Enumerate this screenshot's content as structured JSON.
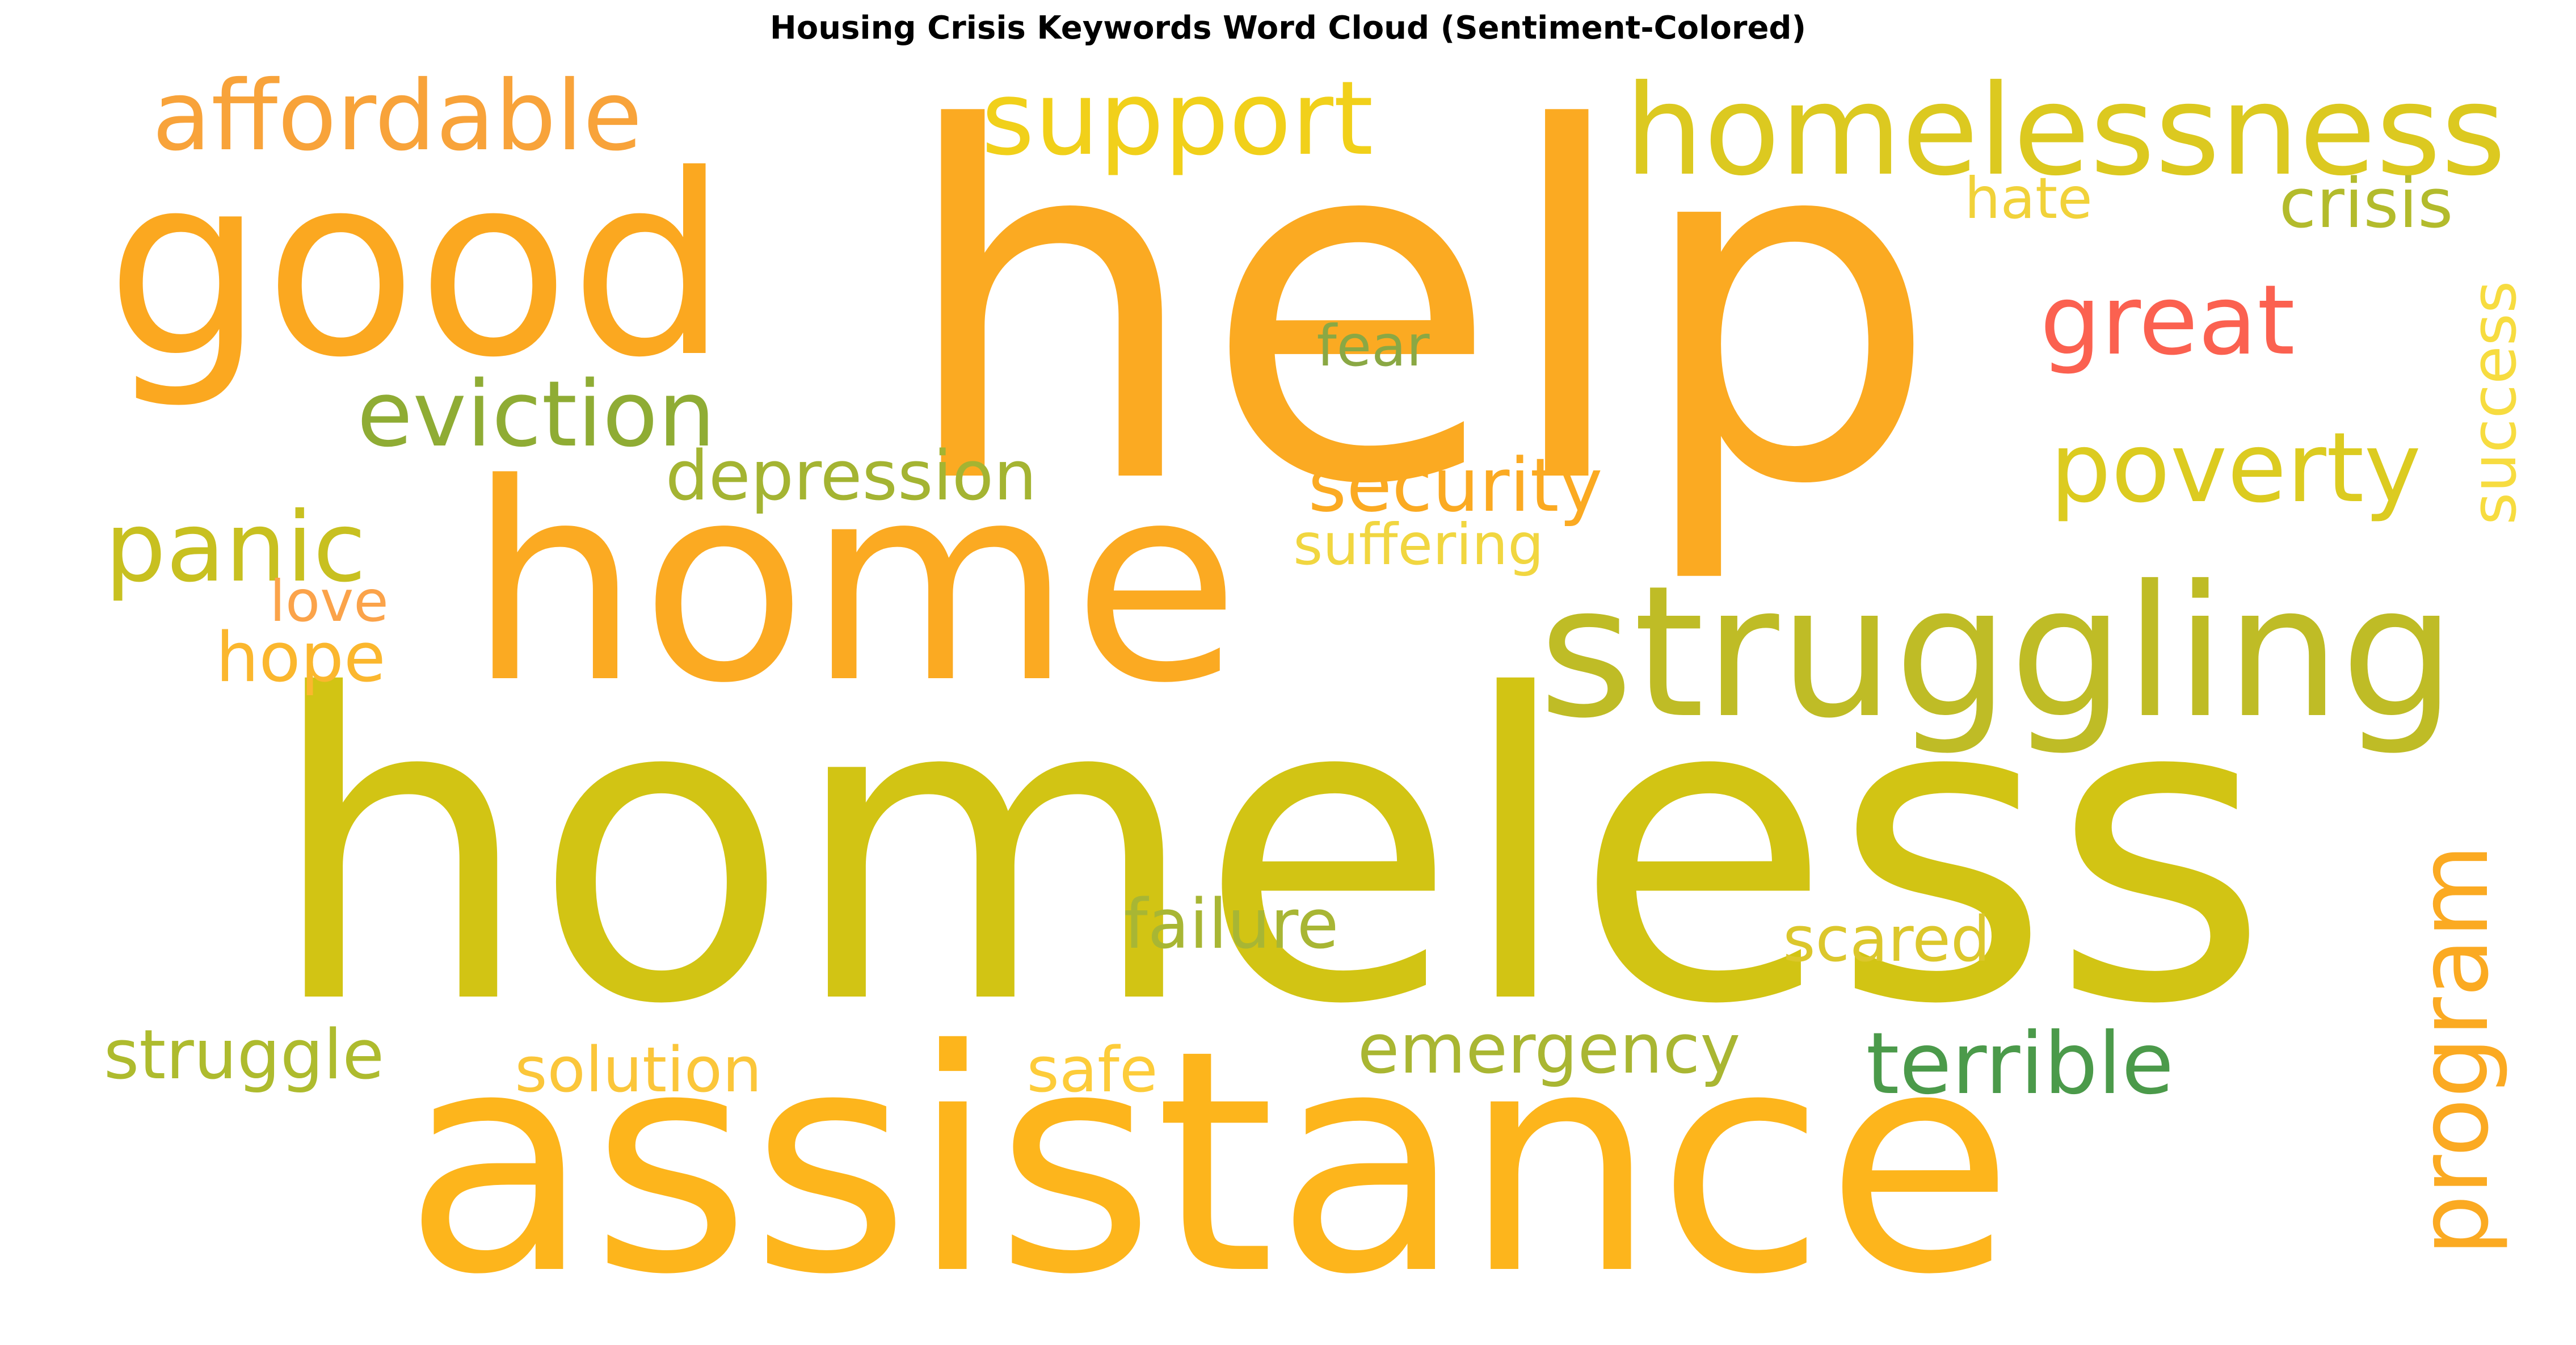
{
  "title": "Housing Crisis Keywords Word Cloud (Sentiment-Colored)",
  "words": [
    {
      "text": "homeless",
      "color": "#d2c414",
      "vertical": false
    },
    {
      "text": "help",
      "color": "#fbaa22",
      "vertical": false
    },
    {
      "text": "assistance",
      "color": "#fdb51c",
      "vertical": false
    },
    {
      "text": "home",
      "color": "#fbaa22",
      "vertical": false
    },
    {
      "text": "good",
      "color": "#fba820",
      "vertical": false
    },
    {
      "text": "struggling",
      "color": "#bfbc26",
      "vertical": false
    },
    {
      "text": "homelessness",
      "color": "#dcc920",
      "vertical": false
    },
    {
      "text": "affordable",
      "color": "#f8a33a",
      "vertical": false
    },
    {
      "text": "support",
      "color": "#f1d01a",
      "vertical": false
    },
    {
      "text": "great",
      "color": "#fb6150",
      "vertical": false
    },
    {
      "text": "eviction",
      "color": "#8fac34",
      "vertical": false
    },
    {
      "text": "poverty",
      "color": "#dccb20",
      "vertical": false
    },
    {
      "text": "security",
      "color": "#fbaa22",
      "vertical": false
    },
    {
      "text": "panic",
      "color": "#c8c020",
      "vertical": false
    },
    {
      "text": "crisis",
      "color": "#b3bb2c",
      "vertical": false
    },
    {
      "text": "depression",
      "color": "#a4b432",
      "vertical": false
    },
    {
      "text": "program",
      "color": "#fbaa22",
      "vertical": true
    },
    {
      "text": "terrible",
      "color": "#4b9a4a",
      "vertical": false
    },
    {
      "text": "struggle",
      "color": "#aebb2e",
      "vertical": false
    },
    {
      "text": "emergency",
      "color": "#a9b632",
      "vertical": false
    },
    {
      "text": "failure",
      "color": "#a8b634",
      "vertical": false
    },
    {
      "text": "scared",
      "color": "#dcc72c",
      "vertical": false
    },
    {
      "text": "solution",
      "color": "#fbc63a",
      "vertical": false
    },
    {
      "text": "safe",
      "color": "#fdcc3a",
      "vertical": false
    },
    {
      "text": "hope",
      "color": "#fbb72e",
      "vertical": false
    },
    {
      "text": "love",
      "color": "#fba34a",
      "vertical": false
    },
    {
      "text": "hate",
      "color": "#f1d23a",
      "vertical": false
    },
    {
      "text": "fear",
      "color": "#8aa844",
      "vertical": false
    },
    {
      "text": "suffering",
      "color": "#f1d640",
      "vertical": false
    },
    {
      "text": "success",
      "color": "#f7dc40",
      "vertical": true
    }
  ]
}
